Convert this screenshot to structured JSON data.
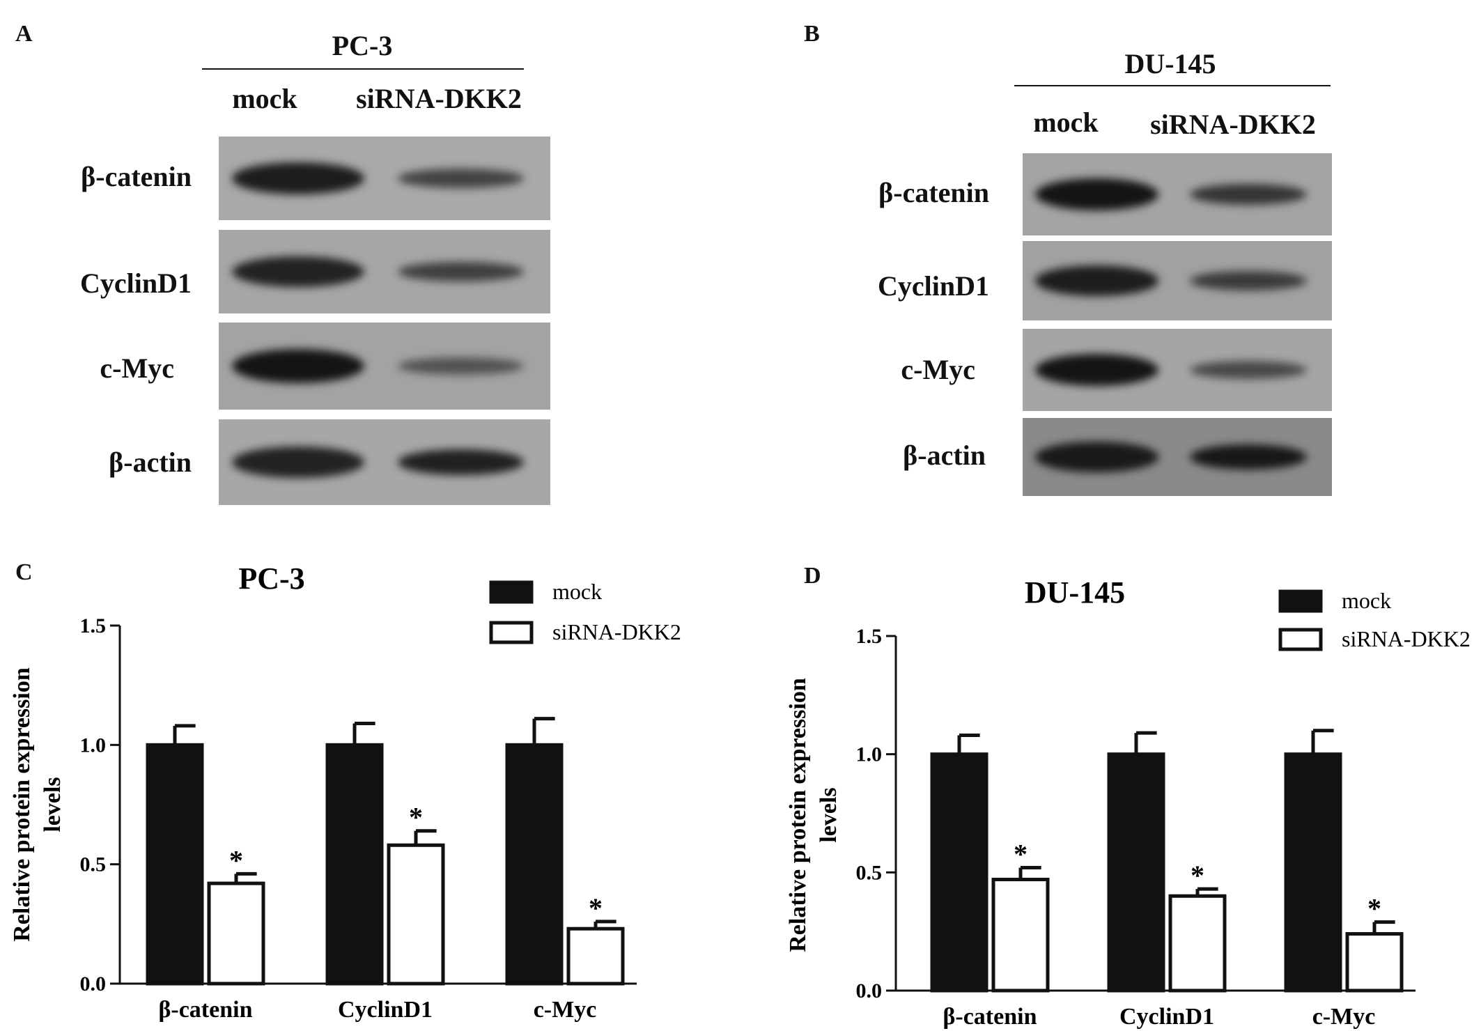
{
  "panels": {
    "A": {
      "letter": "A"
    },
    "B": {
      "letter": "B"
    },
    "C": {
      "letter": "C"
    },
    "D": {
      "letter": "D"
    }
  },
  "blots": [
    {
      "cell_line": "PC-3",
      "lanes": [
        "mock",
        "siRNA-DKK2"
      ],
      "rows": [
        {
          "label": "β-catenin",
          "mock_intensity": 0.85,
          "sirna_intensity": 0.45,
          "bg": "#a9a9a9"
        },
        {
          "label": "CyclinD1",
          "mock_intensity": 0.8,
          "sirna_intensity": 0.5,
          "bg": "#a6a6a6"
        },
        {
          "label": "c-Myc",
          "mock_intensity": 0.95,
          "sirna_intensity": 0.3,
          "bg": "#a3a3a3"
        },
        {
          "label": "β-actin",
          "mock_intensity": 0.8,
          "sirna_intensity": 0.82,
          "bg": "#a7a7a7"
        }
      ]
    },
    {
      "cell_line": "DU-145",
      "lanes": [
        "mock",
        "siRNA-DKK2"
      ],
      "rows": [
        {
          "label": "β-catenin",
          "mock_intensity": 0.95,
          "sirna_intensity": 0.6,
          "bg": "#a4a4a4"
        },
        {
          "label": "CyclinD1",
          "mock_intensity": 0.85,
          "sirna_intensity": 0.55,
          "bg": "#a1a1a1"
        },
        {
          "label": "c-Myc",
          "mock_intensity": 0.95,
          "sirna_intensity": 0.4,
          "bg": "#a5a5a5"
        },
        {
          "label": "β-actin",
          "mock_intensity": 0.9,
          "sirna_intensity": 0.92,
          "bg": "#8a8a8a"
        }
      ]
    }
  ],
  "chart_data": [
    {
      "type": "bar",
      "title": "PC-3",
      "xlabel": "",
      "ylabel": "Relative protein expression levels",
      "ylim": [
        0,
        1.5
      ],
      "yticks": [
        "0.0",
        "0.5",
        "1.0",
        "1.5"
      ],
      "categories": [
        "β-catenin",
        "CyclinD1",
        "c-Myc"
      ],
      "series": [
        {
          "name": "mock",
          "values": [
            1.0,
            1.0,
            1.0
          ],
          "errors": [
            0.08,
            0.09,
            0.11
          ],
          "fill": "#111111"
        },
        {
          "name": "siRNA-DKK2",
          "values": [
            0.42,
            0.58,
            0.23
          ],
          "errors": [
            0.04,
            0.06,
            0.03
          ],
          "fill": "#ffffff"
        }
      ],
      "significance": [
        "*",
        "*",
        "*"
      ],
      "legend": "top-right"
    },
    {
      "type": "bar",
      "title": "DU-145",
      "xlabel": "",
      "ylabel": "Relative protein expression levels",
      "ylim": [
        0,
        1.5
      ],
      "yticks": [
        "0.0",
        "0.5",
        "1.0",
        "1.5"
      ],
      "categories": [
        "β-catenin",
        "CyclinD1",
        "c-Myc"
      ],
      "series": [
        {
          "name": "mock",
          "values": [
            1.0,
            1.0,
            1.0
          ],
          "errors": [
            0.08,
            0.09,
            0.1
          ],
          "fill": "#111111"
        },
        {
          "name": "siRNA-DKK2",
          "values": [
            0.47,
            0.4,
            0.24
          ],
          "errors": [
            0.05,
            0.03,
            0.05
          ],
          "fill": "#ffffff"
        }
      ],
      "significance": [
        "*",
        "*",
        "*"
      ],
      "legend": "top-right"
    }
  ]
}
